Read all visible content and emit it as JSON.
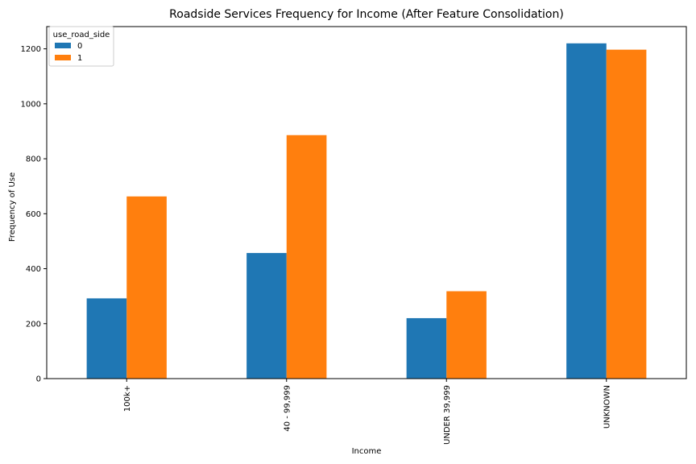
{
  "chart_data": {
    "type": "bar",
    "title": "Roadside Services Frequency for Income (After Feature Consolidation)",
    "xlabel": "Income",
    "ylabel": "Frequency of Use",
    "categories": [
      "100k+",
      "40 - 99,999",
      "UNDER 39,999",
      "UNKNOWN"
    ],
    "series": [
      {
        "name": "0",
        "values": [
          292,
          457,
          220,
          1220
        ],
        "color": "#1f77b4"
      },
      {
        "name": "1",
        "values": [
          663,
          886,
          318,
          1197
        ],
        "color": "#ff7f0e"
      }
    ],
    "ylim": [
      0,
      1281
    ],
    "yticks": [
      0,
      200,
      400,
      600,
      800,
      1000,
      1200
    ],
    "legend": {
      "title": "use_road_side",
      "position": "top-left"
    },
    "grid": false
  }
}
